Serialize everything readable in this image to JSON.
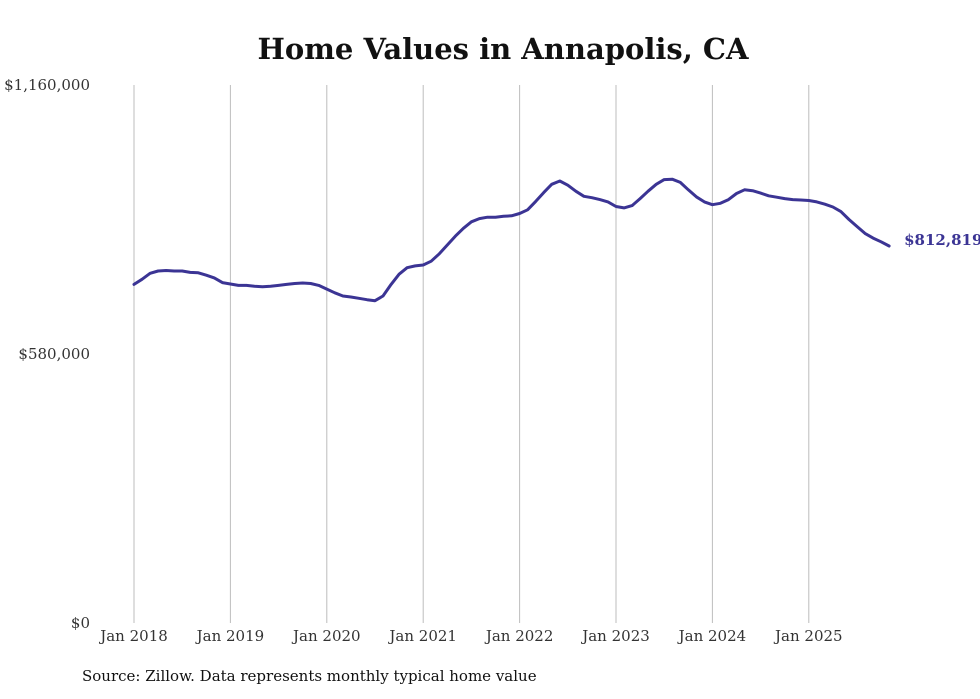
{
  "chart_data": {
    "type": "line",
    "title": "Home Values in Annapolis, CA",
    "xlabel": "",
    "ylabel": "",
    "ylim": [
      0,
      1160000
    ],
    "y_ticks": [
      {
        "value": 1160000,
        "label": "$1,160,000"
      },
      {
        "value": 580000,
        "label": "$580,000"
      },
      {
        "value": 0,
        "label": "$0"
      }
    ],
    "x_ticks": [
      "Jan 2018",
      "Jan 2019",
      "Jan 2020",
      "Jan 2021",
      "Jan 2022",
      "Jan 2023",
      "Jan 2024",
      "Jan 2025"
    ],
    "x_start": "Jan 2018",
    "grid": "vertical",
    "line_color": "#3b3494",
    "series": [
      {
        "name": "Typical home value",
        "values": [
          730000,
          741000,
          754000,
          759000,
          760000,
          759000,
          759000,
          756000,
          755000,
          750000,
          744000,
          734000,
          731000,
          728000,
          728000,
          726000,
          725000,
          726000,
          728000,
          730000,
          732000,
          733000,
          732000,
          728000,
          720000,
          712000,
          705000,
          703000,
          700000,
          697000,
          695000,
          705000,
          730000,
          752000,
          766000,
          770000,
          772000,
          780000,
          796000,
          815000,
          834000,
          851000,
          865000,
          872000,
          875000,
          875000,
          877000,
          878000,
          883000,
          891000,
          909000,
          928000,
          946000,
          953000,
          944000,
          931000,
          920000,
          917000,
          913000,
          908000,
          898000,
          895000,
          900000,
          915000,
          931000,
          946000,
          956000,
          957000,
          950000,
          934000,
          919000,
          908000,
          902000,
          905000,
          913000,
          926000,
          934000,
          932000,
          927000,
          921000,
          918000,
          915000,
          913000,
          912000,
          911000,
          908000,
          903000,
          897000,
          887000,
          870000,
          855000,
          840000,
          830000,
          822000,
          812819
        ]
      }
    ],
    "end_label": "$812,819",
    "source": "Source: Zillow. Data represents monthly typical home value"
  }
}
